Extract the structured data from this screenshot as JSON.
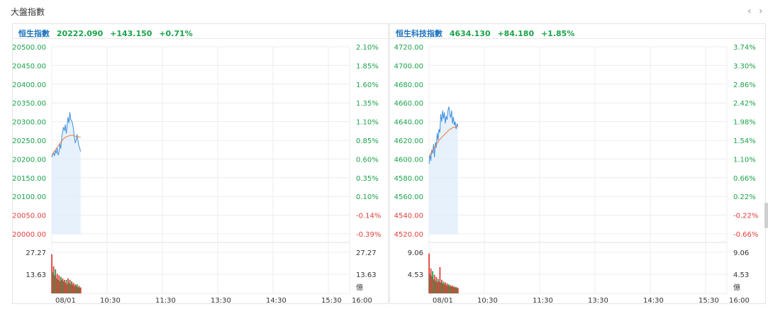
{
  "page": {
    "title": "大盤指數",
    "prev_icon": "‹",
    "next_icon": "›"
  },
  "colors": {
    "up": "#1aa34a",
    "down": "#e0403c",
    "name": "#1a72bf",
    "price_line": "#3c8fe0",
    "avg_line": "#f07a3a",
    "area": "#dcebfa"
  },
  "panels": [
    {
      "name": "恒生指數",
      "price": "20222.090",
      "change": "+143.150",
      "change_pct": "+0.71%",
      "left_ticks": [
        "20500.00",
        "20450.00",
        "20400.00",
        "20350.00",
        "20300.00",
        "20250.00",
        "20200.00",
        "20150.00",
        "20100.00",
        "20050.00",
        "20000.00"
      ],
      "right_ticks": [
        "2.10%",
        "1.85%",
        "1.60%",
        "1.35%",
        "1.10%",
        "0.85%",
        "0.60%",
        "0.35%",
        "0.10%",
        "-0.14%",
        "-0.39%"
      ],
      "vol_left_ticks": [
        "27.27",
        "13.63"
      ],
      "vol_right_ticks": [
        "27.27",
        "13.63"
      ],
      "vol_unit": "億",
      "time_labels": [
        "08/01",
        "10:30",
        "11:30",
        "13:30",
        "14:30",
        "15:30",
        "16:00"
      ]
    },
    {
      "name": "恒生科技指數",
      "price": "4634.130",
      "change": "+84.180",
      "change_pct": "+1.85%",
      "left_ticks": [
        "4720.00",
        "4700.00",
        "4680.00",
        "4660.00",
        "4640.00",
        "4620.00",
        "4600.00",
        "4580.00",
        "4560.00",
        "4540.00",
        "4520.00"
      ],
      "right_ticks": [
        "3.74%",
        "3.30%",
        "2.86%",
        "2.42%",
        "1.98%",
        "1.54%",
        "1.10%",
        "0.66%",
        "0.22%",
        "-0.22%",
        "-0.66%"
      ],
      "vol_left_ticks": [
        "9.06",
        "4.53"
      ],
      "vol_right_ticks": [
        "9.06",
        "4.53"
      ],
      "vol_unit": "億",
      "time_labels": [
        "08/01",
        "10:30",
        "11:30",
        "13:30",
        "14:30",
        "15:30",
        "16:00"
      ]
    }
  ],
  "chart_data": [
    {
      "type": "line",
      "title": "恒生指數",
      "ylim": [
        20000,
        20500
      ],
      "series": [
        {
          "values": [
            20205,
            20212,
            20218,
            20208,
            20222,
            20215,
            20230,
            20210,
            20218,
            20240,
            20228,
            20258,
            20272,
            20285,
            20276,
            20292,
            20268,
            20288,
            20312,
            20296,
            20325,
            20306,
            20302,
            20295,
            20282,
            20260,
            20244,
            20250,
            20266,
            20250,
            20236,
            20228,
            20220
          ]
        },
        {
          "values": [
            20210,
            20214,
            20218,
            20221,
            20224,
            20228,
            20231,
            20235,
            20238,
            20242,
            20245,
            20248,
            20251,
            20254,
            20256,
            20258,
            20259,
            20260,
            20261,
            20262,
            20263,
            20263,
            20264,
            20263,
            20263,
            20262,
            20261,
            20261,
            20260,
            20260,
            20259,
            20259,
            20258
          ]
        }
      ],
      "volume": [
        26,
        14,
        18,
        12,
        16,
        10,
        13,
        9,
        12,
        8,
        11,
        9,
        10,
        8,
        9,
        7,
        9,
        6,
        10,
        7,
        9,
        6,
        8,
        6,
        7,
        5,
        6,
        5,
        6,
        4,
        5,
        4,
        4
      ],
      "volume_ylim": [
        0,
        27.27
      ]
    },
    {
      "type": "line",
      "title": "恒生科技指數",
      "ylim": [
        4520,
        4720
      ],
      "series": [
        {
          "values": [
            4595,
            4605,
            4598,
            4610,
            4606,
            4616,
            4602,
            4618,
            4612,
            4628,
            4620,
            4632,
            4628,
            4648,
            4640,
            4652,
            4643,
            4650,
            4638,
            4646,
            4642,
            4652,
            4656,
            4648,
            4644,
            4652,
            4638,
            4645,
            4636,
            4640,
            4632,
            4638,
            4634
          ]
        },
        {
          "values": [
            4602,
            4604,
            4606,
            4608,
            4609,
            4611,
            4612,
            4614,
            4615,
            4617,
            4618,
            4620,
            4621,
            4622,
            4623,
            4624,
            4625,
            4626,
            4627,
            4628,
            4629,
            4630,
            4631,
            4632,
            4632,
            4633,
            4633,
            4634,
            4634,
            4634,
            4635,
            4635,
            4635
          ]
        }
      ],
      "volume": [
        8.8,
        4.2,
        5.5,
        3.8,
        4.9,
        3.1,
        4.1,
        2.8,
        3.6,
        2.5,
        3.2,
        2.6,
        5.8,
        2.4,
        3.0,
        2.2,
        2.6,
        2.0,
        2.4,
        1.8,
        2.2,
        1.7,
        2.0,
        1.6,
        1.8,
        1.5,
        1.7,
        1.4,
        1.5,
        1.3,
        1.4,
        1.2,
        1.2
      ],
      "volume_ylim": [
        0,
        9.06
      ]
    }
  ]
}
